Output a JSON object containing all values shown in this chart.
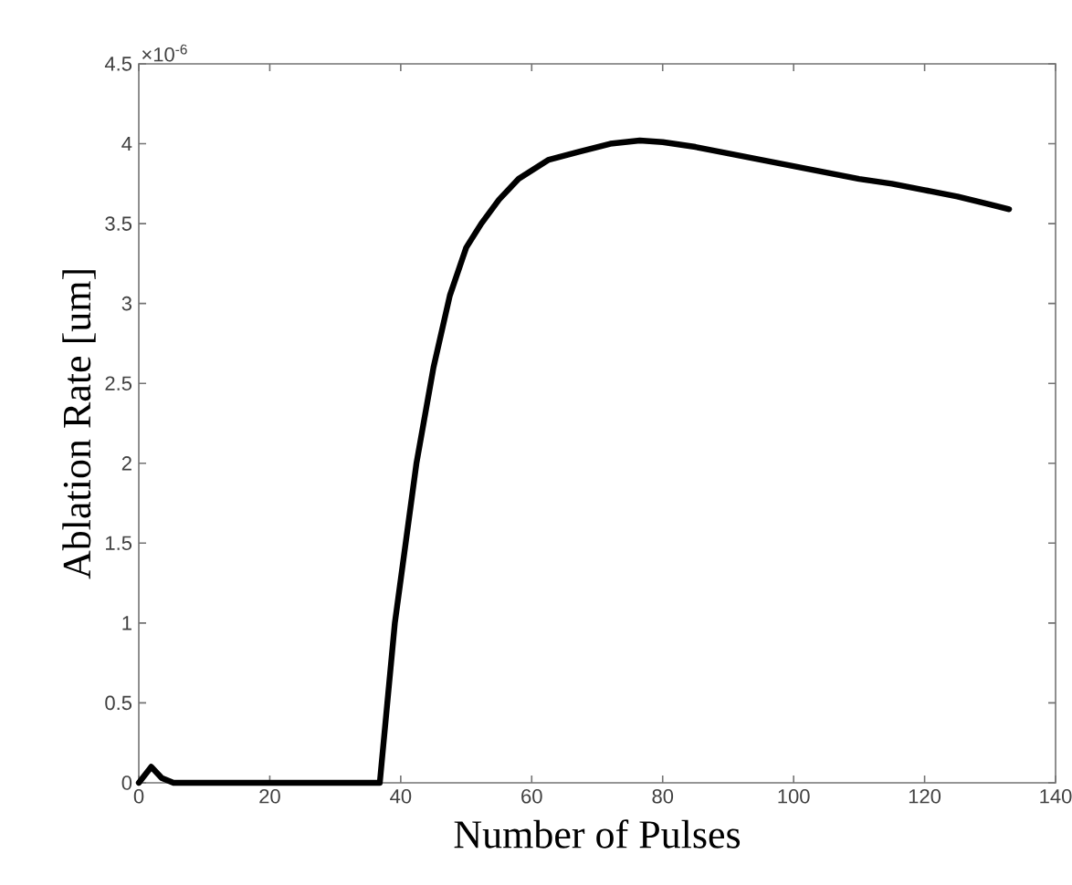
{
  "chart_data": {
    "type": "line",
    "xlabel": "Number of Pulses",
    "ylabel": "Ablation Rate [um]",
    "annotations": [
      "×10$^{-6}$"
    ],
    "xlim": [
      0,
      140
    ],
    "xticks": [
      0,
      20,
      40,
      60,
      80,
      100,
      120,
      140
    ],
    "ylim": [
      0,
      4.5
    ],
    "yticks": [
      0,
      0.5,
      1,
      1.5,
      2,
      2.5,
      3,
      3.5,
      4,
      4.5
    ],
    "marker": "none",
    "line_style": "solid",
    "series": [
      {
        "color": "#000000",
        "x": [
          0,
          1.9,
          3.5,
          5.3,
          10,
          20,
          30,
          36.8,
          39.1,
          42.4,
          45,
          47.5,
          50,
          52.3,
          55,
          58,
          62.6,
          67.2,
          72,
          76.5,
          80,
          85,
          90,
          95,
          100,
          105,
          110,
          115,
          120,
          125,
          130,
          132.9
        ],
        "values": [
          0,
          0.1,
          0.03,
          0,
          0,
          0,
          0,
          0,
          1,
          2,
          2.6,
          3.05,
          3.35,
          3.5,
          3.65,
          3.78,
          3.9,
          3.95,
          4.0,
          4.02,
          4.01,
          3.98,
          3.94,
          3.9,
          3.86,
          3.82,
          3.78,
          3.75,
          3.71,
          3.67,
          3.62,
          3.59
        ]
      }
    ]
  }
}
